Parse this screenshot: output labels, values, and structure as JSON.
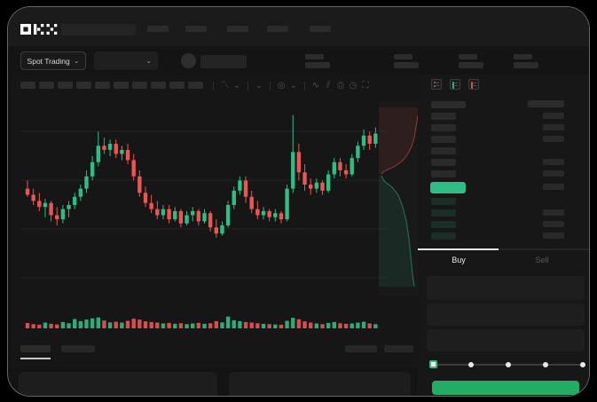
{
  "header": {
    "logo": "OKX",
    "menu_placeholder_count": 5
  },
  "subheader": {
    "market_selector_label": "Spot Trading",
    "chevron": "⌄",
    "stat_group_count": 4
  },
  "chart_toolbar": {
    "timeframe_placeholder_count": 10,
    "icons": [
      {
        "name": "candle-style-icon",
        "glyph": "〽"
      },
      {
        "name": "chevron-down-icon",
        "glyph": "⌄"
      },
      {
        "name": "chevron-down-icon",
        "glyph": "⌄"
      },
      {
        "name": "magnet-icon",
        "glyph": "◎"
      },
      {
        "name": "chevron-down-icon",
        "glyph": "⌄"
      },
      {
        "name": "indicators-icon",
        "glyph": "∿"
      },
      {
        "name": "compare-icon",
        "glyph": "⫽"
      },
      {
        "name": "camera-icon",
        "glyph": "⎙"
      },
      {
        "name": "history-icon",
        "glyph": "◷"
      },
      {
        "name": "fullscreen-icon",
        "glyph": "⛶"
      }
    ]
  },
  "orderbook": {
    "view_icons": [
      "book-combined-icon",
      "book-bids-icon",
      "book-asks-icon"
    ],
    "rows": [
      {
        "type": "header",
        "amount": true
      },
      {
        "type": "ask",
        "amount": true
      },
      {
        "type": "ask",
        "amount": true
      },
      {
        "type": "ask",
        "amount": true
      },
      {
        "type": "ask",
        "amount": false
      },
      {
        "type": "ask",
        "amount": true
      },
      {
        "type": "ask",
        "amount": true
      },
      {
        "type": "price",
        "amount": true
      },
      {
        "type": "bid",
        "amount": false
      },
      {
        "type": "bid",
        "amount": true
      },
      {
        "type": "bid",
        "amount": true
      },
      {
        "type": "bid",
        "amount": true
      }
    ],
    "tabs": {
      "buy": "Buy",
      "sell": "Sell",
      "active": "Buy"
    }
  },
  "trade_form": {
    "field_count": 3,
    "slider": {
      "positions": 5,
      "active_index": 0
    }
  },
  "colors": {
    "up": "#2ebd85",
    "down": "#ee5451",
    "buy_button": "#23ad64",
    "price_highlight": "#2ebd85"
  },
  "chart_data": {
    "type": "candlestick",
    "title": "",
    "xlabel": "",
    "ylabel": "",
    "unit_range": [
      0,
      100
    ],
    "grid": "faint-horizontal",
    "candles_ohlc": [
      [
        58,
        62,
        54,
        55
      ],
      [
        55,
        58,
        50,
        52
      ],
      [
        52,
        56,
        47,
        49
      ],
      [
        49,
        53,
        44,
        51
      ],
      [
        51,
        52,
        42,
        45
      ],
      [
        45,
        49,
        40,
        43
      ],
      [
        43,
        50,
        41,
        48
      ],
      [
        48,
        52,
        44,
        50
      ],
      [
        50,
        56,
        48,
        54
      ],
      [
        54,
        60,
        52,
        58
      ],
      [
        58,
        67,
        56,
        64
      ],
      [
        64,
        74,
        62,
        71
      ],
      [
        71,
        86,
        69,
        79
      ],
      [
        79,
        83,
        75,
        77
      ],
      [
        77,
        82,
        74,
        80
      ],
      [
        80,
        82,
        73,
        75
      ],
      [
        75,
        79,
        72,
        77
      ],
      [
        77,
        80,
        70,
        72
      ],
      [
        72,
        75,
        62,
        64
      ],
      [
        64,
        67,
        54,
        56
      ],
      [
        56,
        59,
        49,
        51
      ],
      [
        51,
        55,
        46,
        48
      ],
      [
        48,
        52,
        43,
        45
      ],
      [
        45,
        50,
        43,
        48
      ],
      [
        48,
        50,
        41,
        43
      ],
      [
        43,
        49,
        42,
        47
      ],
      [
        47,
        48,
        39,
        41
      ],
      [
        41,
        47,
        40,
        45
      ],
      [
        45,
        49,
        42,
        47
      ],
      [
        47,
        48,
        40,
        42
      ],
      [
        42,
        48,
        41,
        46
      ],
      [
        46,
        47,
        37,
        39
      ],
      [
        39,
        43,
        34,
        36
      ],
      [
        36,
        42,
        35,
        40
      ],
      [
        40,
        52,
        39,
        50
      ],
      [
        50,
        59,
        48,
        57
      ],
      [
        57,
        64,
        55,
        62
      ],
      [
        62,
        64,
        51,
        54
      ],
      [
        54,
        57,
        46,
        48
      ],
      [
        48,
        52,
        43,
        45
      ],
      [
        45,
        49,
        43,
        47
      ],
      [
        47,
        48,
        42,
        44
      ],
      [
        44,
        48,
        42,
        46
      ],
      [
        46,
        47,
        41,
        43
      ],
      [
        43,
        60,
        42,
        58
      ],
      [
        58,
        94,
        56,
        76
      ],
      [
        76,
        80,
        62,
        66
      ],
      [
        66,
        70,
        57,
        60
      ],
      [
        60,
        63,
        55,
        58
      ],
      [
        58,
        63,
        56,
        61
      ],
      [
        61,
        62,
        55,
        57
      ],
      [
        57,
        67,
        56,
        65
      ],
      [
        65,
        73,
        63,
        71
      ],
      [
        71,
        73,
        64,
        67
      ],
      [
        67,
        70,
        63,
        65
      ],
      [
        65,
        75,
        64,
        73
      ],
      [
        73,
        81,
        71,
        79
      ],
      [
        79,
        87,
        77,
        84
      ],
      [
        84,
        86,
        77,
        80
      ],
      [
        80,
        88,
        78,
        85
      ]
    ],
    "volumes": [
      35,
      28,
      24,
      38,
      30,
      26,
      42,
      34,
      62,
      48,
      58,
      66,
      72,
      52,
      40,
      44,
      38,
      50,
      64,
      58,
      46,
      42,
      38,
      32,
      36,
      30,
      34,
      28,
      32,
      36,
      30,
      34,
      48,
      40,
      78,
      54,
      48,
      42,
      38,
      34,
      30,
      28,
      26,
      24,
      50,
      70,
      60,
      46,
      38,
      32,
      28,
      36,
      42,
      34,
      30,
      32,
      38,
      44,
      32,
      28
    ],
    "depth": {
      "orientation": "vertical",
      "asks_curve": [
        [
          46,
          7
        ],
        [
          44,
          17
        ],
        [
          42,
          29
        ],
        [
          40,
          41
        ],
        [
          37,
          51
        ],
        [
          33,
          59
        ],
        [
          27,
          67
        ],
        [
          17,
          74
        ],
        [
          6,
          79
        ],
        [
          3,
          82
        ]
      ],
      "bids_curve": [
        [
          3,
          84
        ],
        [
          6,
          90
        ],
        [
          15,
          97
        ],
        [
          22,
          106
        ],
        [
          27,
          119
        ],
        [
          31,
          135
        ],
        [
          34,
          155
        ],
        [
          36,
          175
        ],
        [
          38,
          195
        ],
        [
          40,
          209
        ]
      ]
    }
  }
}
